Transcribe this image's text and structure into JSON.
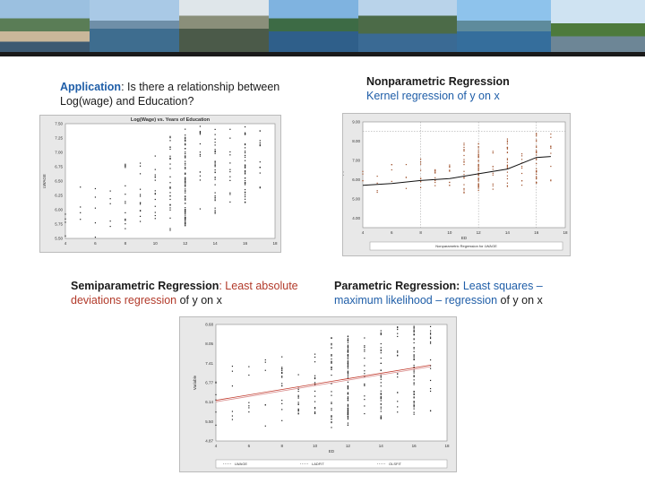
{
  "captions": {
    "application": {
      "lead": "Application",
      "rest": ":  Is there a relationship between Log(wage) and Education?"
    },
    "nonparametric": {
      "title": "Nonparametric Regression",
      "sub": "Kernel regression of y on x"
    },
    "semiparametric": {
      "lead": "Semiparametric Regression",
      "mid": ":  Least absolute deviations regression",
      "tail": " of y on x"
    },
    "parametric": {
      "lead": "Parametric Regression:",
      "mid": "  Least squares – maximum likelihood – regression",
      "tail": " of y on x"
    }
  },
  "colors": {
    "blue": "#1f5ea8",
    "red": "#b23a2a",
    "chart_bg": "#e8e8e8"
  },
  "chart_data": [
    {
      "type": "scatter",
      "title": "Log(Wage) vs. Years of Education",
      "xlabel": "",
      "ylabel": "LWAGE",
      "x_ticks": [
        "4",
        "6",
        "8",
        "10",
        "12",
        "14",
        "16",
        "18"
      ],
      "y_ticks": [
        "5.50",
        "5.75",
        "6.00",
        "6.25",
        "6.50",
        "6.75",
        "7.00",
        "7.25",
        "7.50"
      ],
      "xlim": [
        4,
        18
      ],
      "ylim": [
        5.5,
        7.5
      ]
    },
    {
      "type": "scatter",
      "title": "",
      "xlabel": "ED",
      "ylabel": "F(x)",
      "legend": "Nonparametric Regression for LWAGE",
      "x_ticks": [
        "4",
        "6",
        "8",
        "10",
        "12",
        "14",
        "16",
        "18"
      ],
      "y_ticks": [
        "4.00",
        "5.00",
        "6.00",
        "7.00",
        "8.00",
        "9.00"
      ],
      "xlim": [
        4,
        18
      ],
      "ylim": [
        3.5,
        9.0
      ],
      "fit": [
        [
          4,
          5.7
        ],
        [
          6,
          5.8
        ],
        [
          8,
          5.95
        ],
        [
          10,
          6.05
        ],
        [
          12,
          6.3
        ],
        [
          14,
          6.55
        ],
        [
          16,
          7.15
        ],
        [
          17,
          7.2
        ]
      ]
    },
    {
      "type": "scatter",
      "title": "",
      "xlabel": "ED",
      "ylabel": "Variable",
      "series": [
        {
          "name": "LWAGE"
        },
        {
          "name": "LADFIT"
        },
        {
          "name": "OLSFIT"
        }
      ],
      "x_ticks": [
        "4",
        "6",
        "8",
        "10",
        "12",
        "14",
        "16",
        "18"
      ],
      "y_ticks": [
        "4.87",
        "5.50",
        "6.14",
        "6.77",
        "7.41",
        "8.05",
        "8.68"
      ],
      "xlim": [
        4,
        18
      ],
      "ylim": [
        4.87,
        8.68
      ],
      "lad_fit": [
        [
          4,
          6.2
        ],
        [
          17,
          7.35
        ]
      ],
      "ols_fit": [
        [
          4,
          6.15
        ],
        [
          17,
          7.3
        ]
      ]
    }
  ]
}
